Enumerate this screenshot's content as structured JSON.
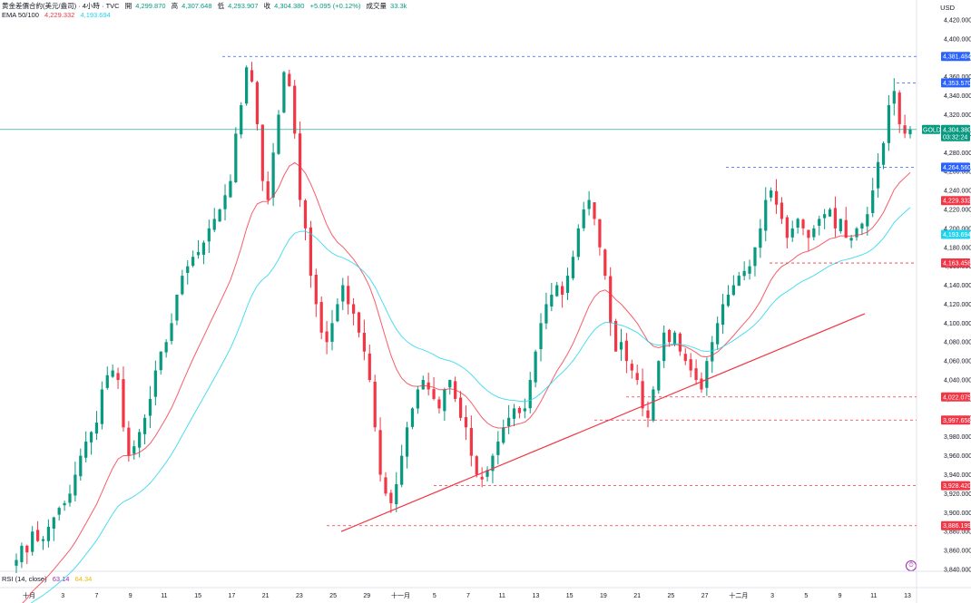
{
  "header": {
    "symbol": "黄金差價合約(美元/盎司) · 4小時 · TVC",
    "open_label": "開",
    "open": "4,299.870",
    "high_label": "高",
    "high": "4,307.648",
    "low_label": "低",
    "low": "4,293.907",
    "close_label": "收",
    "close": "4,304.380",
    "change": "+5.095 (+0.12%)",
    "volume_label": "成交量",
    "volume": "33.3k",
    "ema_label": "EMA 50/100",
    "ema50": "4,229.332",
    "ema100": "4,193.694"
  },
  "rsi": {
    "label": "RSI (14, close)",
    "value1": "63.14",
    "value2": "64.34"
  },
  "currency": "USD",
  "price_tags": [
    {
      "label": "4,381.484",
      "value": 4381.484,
      "color": "#2962ff"
    },
    {
      "label": "4,353.570",
      "value": 4353.57,
      "color": "#2962ff"
    },
    {
      "label": "4,264.560",
      "value": 4264.56,
      "color": "#2962ff"
    },
    {
      "label": "4,229.332",
      "value": 4229.332,
      "color": "#f23645"
    },
    {
      "label": "4,193.694",
      "value": 4193.694,
      "color": "#22d3ee"
    },
    {
      "label": "4,163.458",
      "value": 4163.458,
      "color": "#f23645"
    },
    {
      "label": "4,022.075",
      "value": 4022.075,
      "color": "#f23645"
    },
    {
      "label": "3,997.658",
      "value": 3997.658,
      "color": "#f23645"
    },
    {
      "label": "3,928.420",
      "value": 3928.42,
      "color": "#f23645"
    },
    {
      "label": "3,886.199",
      "value": 3886.199,
      "color": "#f23645"
    }
  ],
  "gold_tag": {
    "symbol": "GOLD",
    "price": "4,304.380",
    "countdown": "03:32:24",
    "value": 4304.38,
    "color": "#089981"
  },
  "icons": {
    "alarm": "alarm-clock-icon"
  },
  "chart_data": {
    "type": "candlestick",
    "ylim": [
      3840,
      4420
    ],
    "y_ticks": [
      3840,
      3860,
      3880,
      3900,
      3920,
      3940,
      3960,
      3980,
      4000,
      4020,
      4040,
      4060,
      4080,
      4100,
      4120,
      4140,
      4160,
      4180,
      4200,
      4220,
      4240,
      4260,
      4280,
      4300,
      4320,
      4340,
      4360,
      4380,
      4400,
      4420
    ],
    "y_tick_labels": [
      "3,840.000",
      "3,860.000",
      "3,880.000",
      "3,900.000",
      "3,920.000",
      "3,940.000",
      "3,960.000",
      "3,980.000",
      "4,000.000",
      "4,020.000",
      "4,040.000",
      "4,060.000",
      "4,080.000",
      "4,100.000",
      "4,120.000",
      "4,140.000",
      "4,160.000",
      "4,180.000",
      "4,200.000",
      "4,220.000",
      "4,240.000",
      "4,260.000",
      "4,280.000",
      "4,300.000",
      "4,320.000",
      "4,340.000",
      "4,360.000",
      "4,380.000",
      "4,400.000",
      "4,420.000"
    ],
    "x_tick_labels": [
      "十月",
      "3",
      "7",
      "9",
      "11",
      "15",
      "17",
      "21",
      "23",
      "25",
      "29",
      "十一月",
      "5",
      "7",
      "11",
      "13",
      "15",
      "19",
      "21",
      "25",
      "27",
      "十二月",
      "3",
      "5",
      "9",
      "11",
      "13"
    ],
    "x_tick_dates": [
      "2025-10-01",
      "2025-10-03",
      "2025-10-07",
      "2025-10-09",
      "2025-10-11",
      "2025-10-15",
      "2025-10-17",
      "2025-10-21",
      "2025-10-23",
      "2025-10-25",
      "2025-10-29",
      "2025-11-01",
      "2025-11-05",
      "2025-11-07",
      "2025-11-11",
      "2025-11-13",
      "2025-11-15",
      "2025-11-19",
      "2025-11-21",
      "2025-11-25",
      "2025-11-27",
      "2025-12-01",
      "2025-12-03",
      "2025-12-05",
      "2025-12-09",
      "2025-12-11",
      "2025-12-13"
    ],
    "close_path": [
      3850,
      3865,
      3858,
      3880,
      3870,
      3872,
      3885,
      3895,
      3905,
      3910,
      3920,
      3940,
      3960,
      3975,
      3985,
      3995,
      4030,
      4045,
      4050,
      4040,
      3990,
      3960,
      3970,
      3985,
      4000,
      4020,
      4050,
      4070,
      4080,
      4100,
      4130,
      4150,
      4160,
      4170,
      4175,
      4185,
      4200,
      4210,
      4220,
      4235,
      4250,
      4300,
      4330,
      4370,
      4355,
      4310,
      4250,
      4230,
      4280,
      4320,
      4365,
      4350,
      4300,
      4230,
      4200,
      4150,
      4120,
      4090,
      4080,
      4100,
      4120,
      4140,
      4120,
      4110,
      4090,
      4070,
      4040,
      3990,
      3940,
      3920,
      3910,
      3930,
      3960,
      3990,
      4010,
      4030,
      4040,
      4030,
      4020,
      4010,
      4030,
      4040,
      4020,
      4000,
      3990,
      3960,
      3940,
      3935,
      3945,
      3960,
      3975,
      3990,
      4000,
      4010,
      4005,
      4010,
      4040,
      4070,
      4100,
      4120,
      4130,
      4140,
      4130,
      4150,
      4170,
      4200,
      4220,
      4230,
      4210,
      4180,
      4150,
      4100,
      4070,
      4080,
      4060,
      4050,
      4040,
      4010,
      4000,
      4030,
      4060,
      4090,
      4080,
      4090,
      4070,
      4060,
      4050,
      4040,
      4030,
      4060,
      4080,
      4100,
      4120,
      4130,
      4140,
      4150,
      4155,
      4160,
      4180,
      4200,
      4230,
      4240,
      4225,
      4210,
      4190,
      4200,
      4210,
      4200,
      4190,
      4200,
      4210,
      4215,
      4220,
      4200,
      4210,
      4190,
      4190,
      4200,
      4205,
      4215,
      4240,
      4270,
      4290,
      4330,
      4345,
      4310,
      4300,
      4304.38
    ],
    "series": [
      {
        "name": "EMA 50",
        "last": 4229.332,
        "color": "#f23645"
      },
      {
        "name": "EMA 100",
        "last": 4193.694,
        "color": "#22d3ee"
      }
    ],
    "trendline": {
      "color": "#f23645",
      "from": 3880,
      "to": 4110
    },
    "last_price_line": 4304.38
  }
}
